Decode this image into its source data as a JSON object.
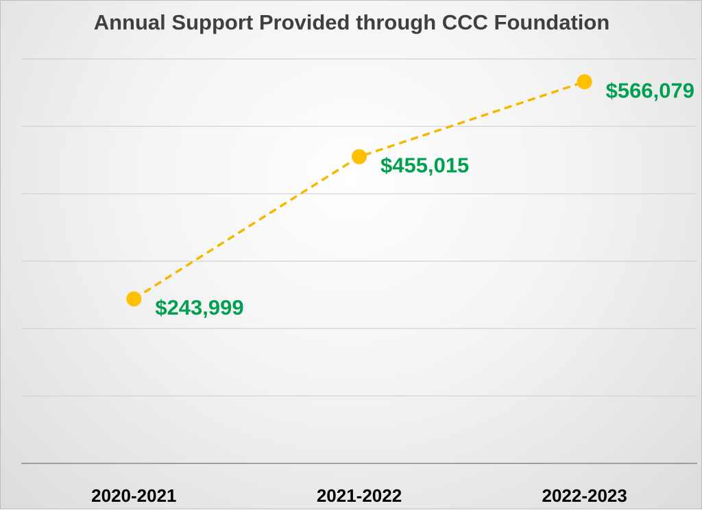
{
  "chart_data": {
    "type": "line",
    "title": "Annual Support Provided through CCC Foundation",
    "categories": [
      "2020-2021",
      "2021-2022",
      "2022-2023"
    ],
    "series": [
      {
        "values": [
          243999,
          455015,
          566079
        ],
        "data_labels": [
          "$243,999",
          "$455,015",
          "$566,079"
        ],
        "line_style": "dashed",
        "marker": "circle"
      }
    ],
    "ylim": [
      0,
      600000
    ],
    "y_gridlines": true,
    "y_tick_labels_visible": false,
    "legend": "none",
    "colors": {
      "line": "#F5B800",
      "marker": "#FFC000",
      "data_label": "#00A050",
      "grid": "#d0d0d0",
      "axis": "#888888"
    }
  }
}
